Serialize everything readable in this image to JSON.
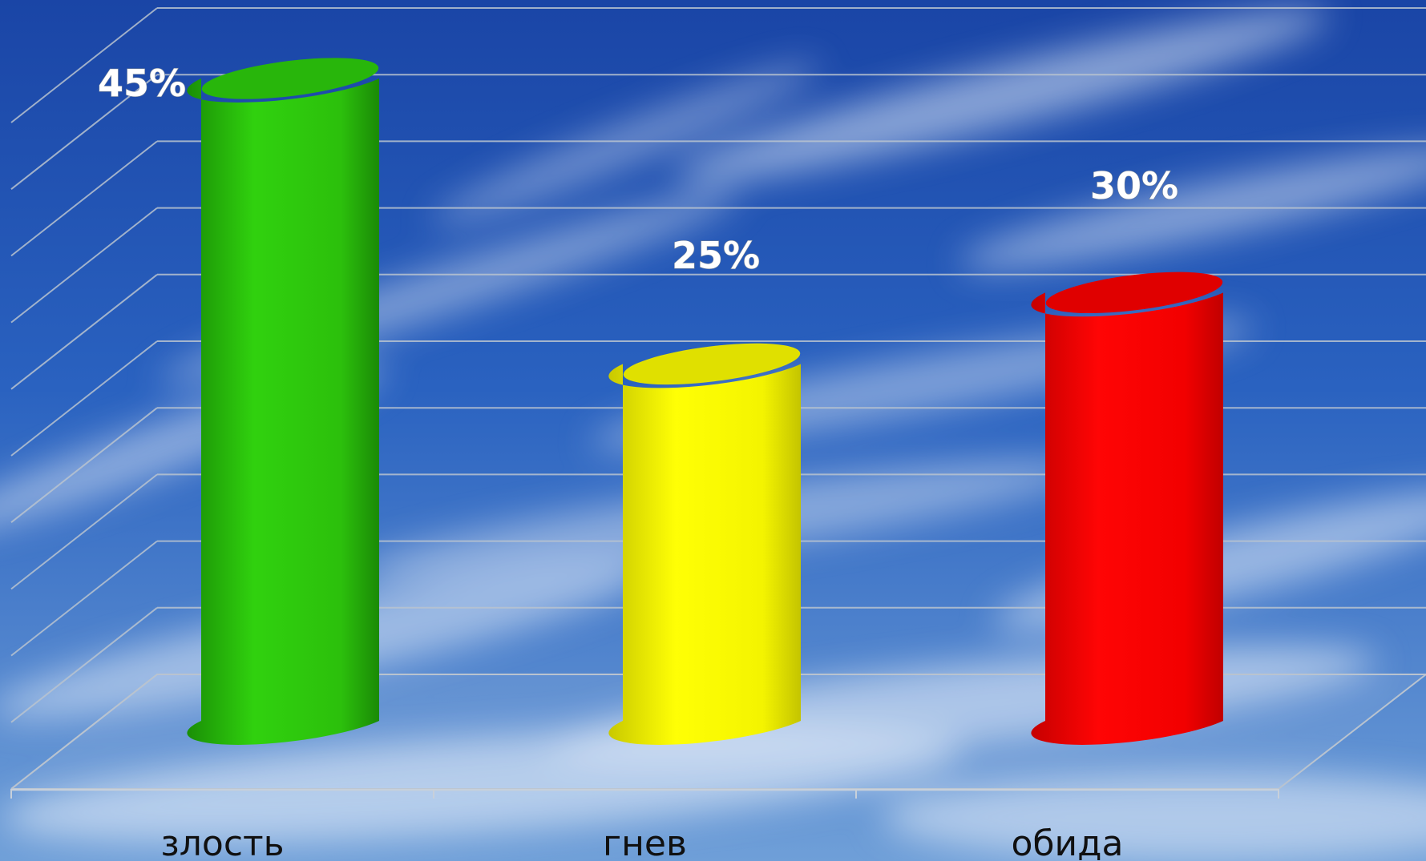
{
  "chart_data": {
    "type": "bar",
    "style": "3d-cylinder",
    "categories": [
      "злость",
      "гнев",
      "обида"
    ],
    "values": [
      45,
      25,
      30
    ],
    "value_labels": [
      "45%",
      "25%",
      "30%"
    ],
    "colors": [
      "#2ed00d",
      "#ffff00",
      "#ff0000"
    ],
    "title": "",
    "xlabel": "",
    "ylabel": "",
    "ylim": [
      0,
      50
    ],
    "grid": true,
    "legend": "none",
    "background": "sky"
  }
}
